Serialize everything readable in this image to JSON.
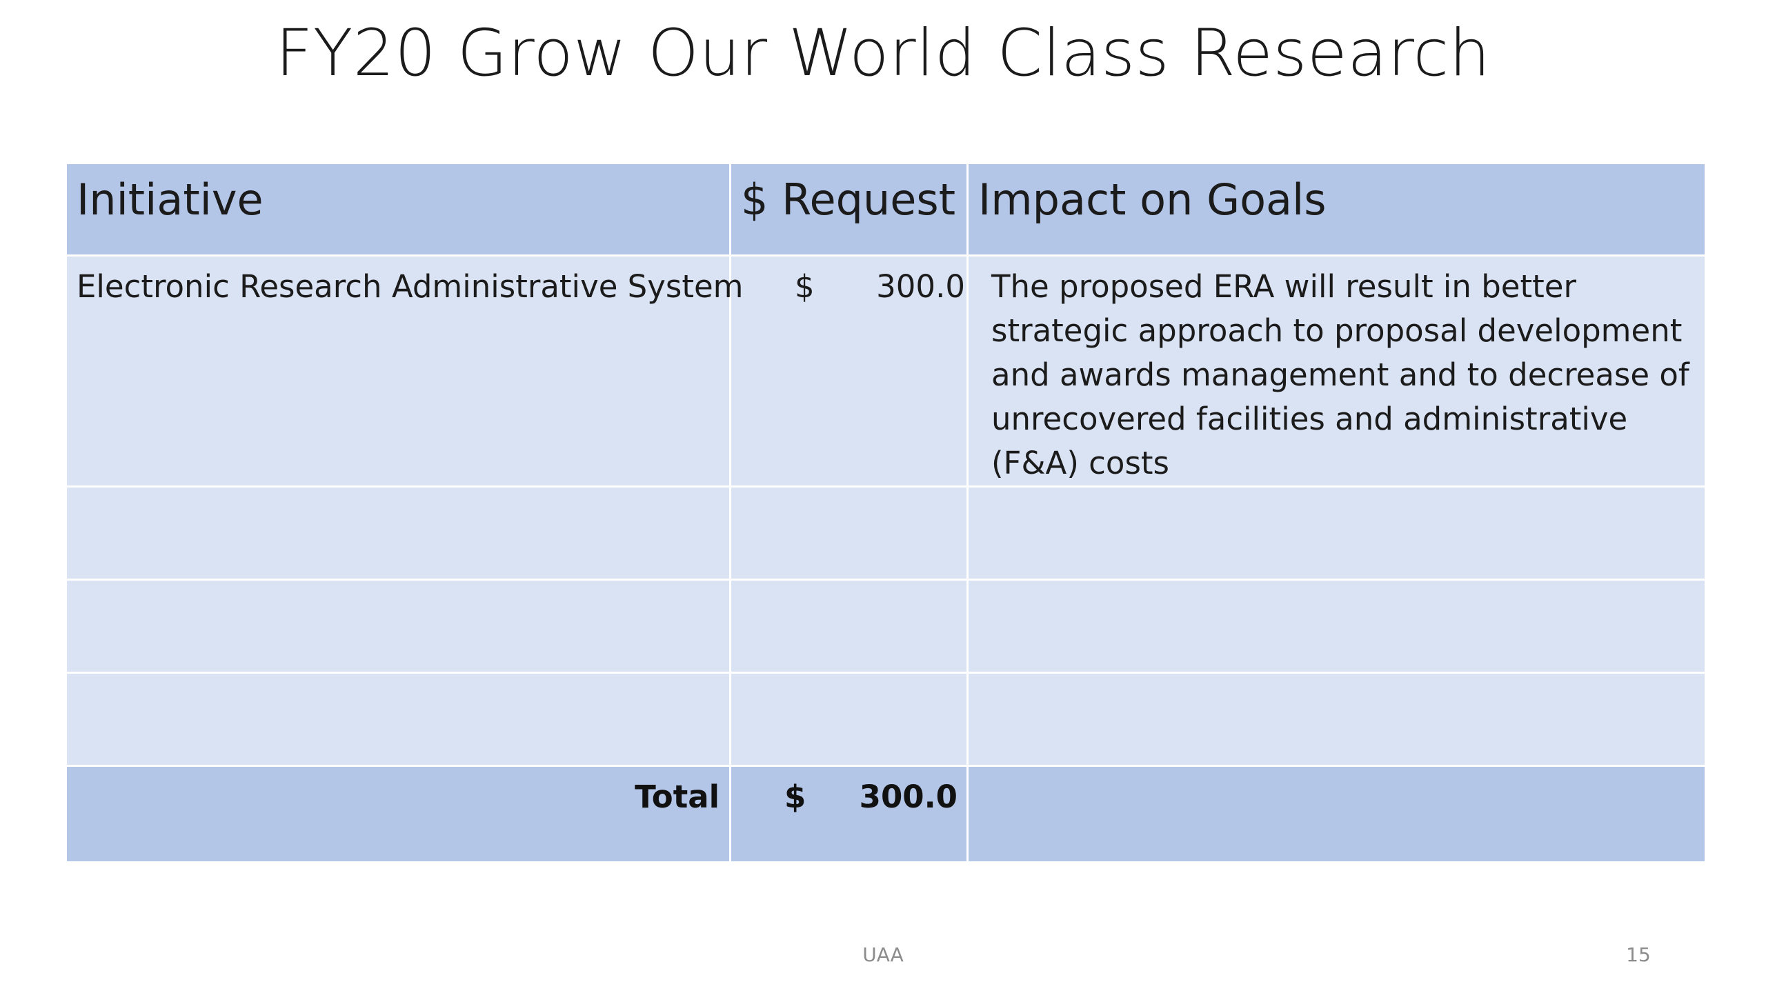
{
  "slide": {
    "title": "FY20 Grow Our World Class Research"
  },
  "table": {
    "headers": [
      "Initiative",
      "$ Request",
      "Impact on Goals"
    ],
    "rows": [
      {
        "initiative": "Electronic Research Administrative System",
        "currency": "$",
        "amount": "300.0",
        "impact": "The proposed ERA will result in better strategic approach to proposal development and awards management and to decrease of unrecovered facilities and administrative (F&A) costs"
      },
      {
        "initiative": "",
        "currency": "",
        "amount": "",
        "impact": ""
      },
      {
        "initiative": "",
        "currency": "",
        "amount": "",
        "impact": ""
      },
      {
        "initiative": "",
        "currency": "",
        "amount": "",
        "impact": ""
      }
    ],
    "total": {
      "label": "Total",
      "currency": "$",
      "amount": "300.0",
      "impact": ""
    }
  },
  "colors": {
    "header_fill": "#b4c6e7",
    "body_fill": "#dae3f3",
    "border": "#ffffff"
  },
  "footer": {
    "center_text": "UAA",
    "page_number": "15"
  }
}
